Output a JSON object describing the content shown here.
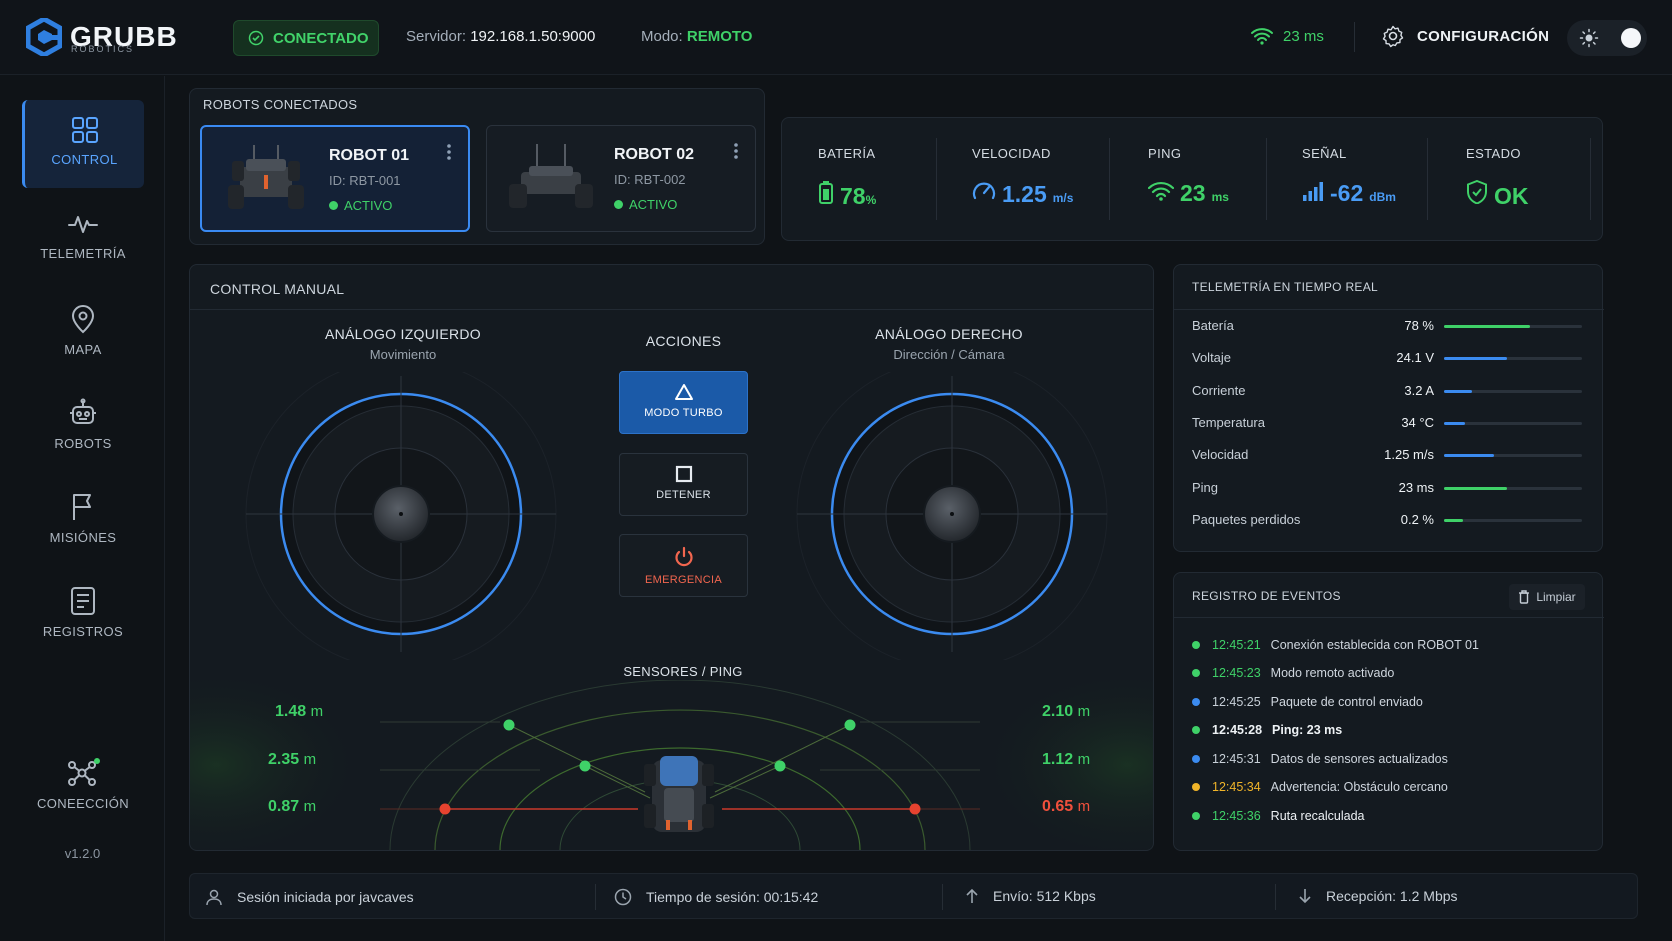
{
  "brand": {
    "name": "GRUBB",
    "sub": "ROBOTICS",
    "color": "#2f7fe0"
  },
  "topbar": {
    "connection": "CONECTADO",
    "server_label": "Servidor:",
    "server_value": "192.168.1.50:9000",
    "mode_label": "Modo:",
    "mode_value": "REMOTO",
    "ping": "23 ms",
    "config": "CONFIGURACIÓN",
    "theme": "dark"
  },
  "sidebar": {
    "items": [
      {
        "label": "CONTROL",
        "icon": "grid-icon",
        "active": true
      },
      {
        "label": "TELEMETRÍA",
        "icon": "pulse-icon"
      },
      {
        "label": "MAPA",
        "icon": "map-pin-icon"
      },
      {
        "label": "ROBOTS",
        "icon": "robot-icon"
      },
      {
        "label": "MISIÓNES",
        "icon": "flag-icon"
      },
      {
        "label": "REGISTROS",
        "icon": "document-icon"
      }
    ],
    "connection": {
      "label": "CONEECCIÓN",
      "icon": "network-icon",
      "online": true
    },
    "version": "v1.2.0"
  },
  "robots": {
    "title": "ROBOTS CONECTADOS",
    "items": [
      {
        "name": "ROBOT 01",
        "id": "ID: RBT-001",
        "status": "ACTIVO",
        "selected": true
      },
      {
        "name": "ROBOT 02",
        "id": "ID: RBT-002",
        "status": "ACTIVO",
        "selected": false
      }
    ]
  },
  "stats": [
    {
      "label": "BATERÍA",
      "value": "78",
      "unit": "%",
      "icon": "battery-icon",
      "color": "#3fd168"
    },
    {
      "label": "VELOCIDAD",
      "value": "1.25",
      "unit": "m/s",
      "icon": "speedometer-icon",
      "color": "#4a9cf5"
    },
    {
      "label": "PING",
      "value": "23",
      "unit": "ms",
      "icon": "wifi-icon",
      "color": "#3fd168"
    },
    {
      "label": "SEÑAL",
      "value": "-62",
      "unit": "dBm",
      "icon": "signal-bars-icon",
      "color": "#4a9cf5"
    },
    {
      "label": "ESTADO",
      "value": "OK",
      "unit": "",
      "icon": "shield-check-icon",
      "color": "#3fd168"
    }
  ],
  "control": {
    "title": "CONTROL MANUAL",
    "left": {
      "title": "ANÁLOGO IZQUIERDO",
      "subtitle": "Movimiento"
    },
    "right": {
      "title": "ANÁLOGO DERECHO",
      "subtitle": "Dirección / Cámara"
    },
    "actions_title": "ACCIONES",
    "actions": [
      {
        "label": "MODO TURBO",
        "icon": "triangle-icon"
      },
      {
        "label": "DETENER",
        "icon": "square-icon"
      },
      {
        "label": "EMERGENCIA",
        "icon": "power-icon"
      }
    ],
    "sensors": {
      "title": "SENSORES / PING",
      "left": [
        {
          "value": "1.48",
          "unit": "m"
        },
        {
          "value": "2.35",
          "unit": "m"
        },
        {
          "value": "0.87",
          "unit": "m"
        }
      ],
      "right": [
        {
          "value": "2.10",
          "unit": "m"
        },
        {
          "value": "1.12",
          "unit": "m"
        },
        {
          "value": "0.65",
          "unit": "m"
        }
      ]
    }
  },
  "telemetry": {
    "title": "TELEMETRÍA EN TIEMPO REAL",
    "rows": [
      {
        "label": "Batería",
        "value": "78 %",
        "level": 0.62,
        "color": "#3fd168"
      },
      {
        "label": "Voltaje",
        "value": "24.1 V",
        "level": 0.46,
        "color": "#3b8bf0"
      },
      {
        "label": "Corriente",
        "value": "3.2 A",
        "level": 0.2,
        "color": "#3b8bf0"
      },
      {
        "label": "Temperatura",
        "value": "34 °C",
        "level": 0.15,
        "color": "#3b8bf0"
      },
      {
        "label": "Velocidad",
        "value": "1.25 m/s",
        "level": 0.36,
        "color": "#3b8bf0"
      },
      {
        "label": "Ping",
        "value": "23 ms",
        "level": 0.46,
        "color": "#3fd168"
      },
      {
        "label": "Paquetes perdidos",
        "value": "0.2 %",
        "level": 0.14,
        "color": "#3fd168"
      }
    ]
  },
  "events": {
    "title": "REGISTRO DE EVENTOS",
    "clear": "Limpiar",
    "items": [
      {
        "time": "12:45:21",
        "msg": "Conexión establecida con ROBOT 01",
        "color": "#3fd168"
      },
      {
        "time": "12:45:23",
        "msg": "Modo remoto activado",
        "color": "#3fd168"
      },
      {
        "time": "12:45:25",
        "msg": "Paquete de control enviado",
        "color": "#3b8bf0"
      },
      {
        "time": "12:45:28",
        "msg": "Ping: 23 ms",
        "color": "#3fd168"
      },
      {
        "time": "12:45:31",
        "msg": "Datos de sensores actualizados",
        "color": "#3b8bf0"
      },
      {
        "time": "12:45:34",
        "msg": "Advertencia: Obstáculo cercano",
        "color": "#f0b429"
      },
      {
        "time": "12:45:36",
        "msg": "Ruta recalculada",
        "color": "#3fd168"
      }
    ]
  },
  "footer": {
    "session": "Sesión iniciada por javcaves",
    "time": "Tiempo de sesión: 00:15:42",
    "upload": "Envío: 512 Kbps",
    "download": "Recepción: 1.2 Mbps"
  }
}
